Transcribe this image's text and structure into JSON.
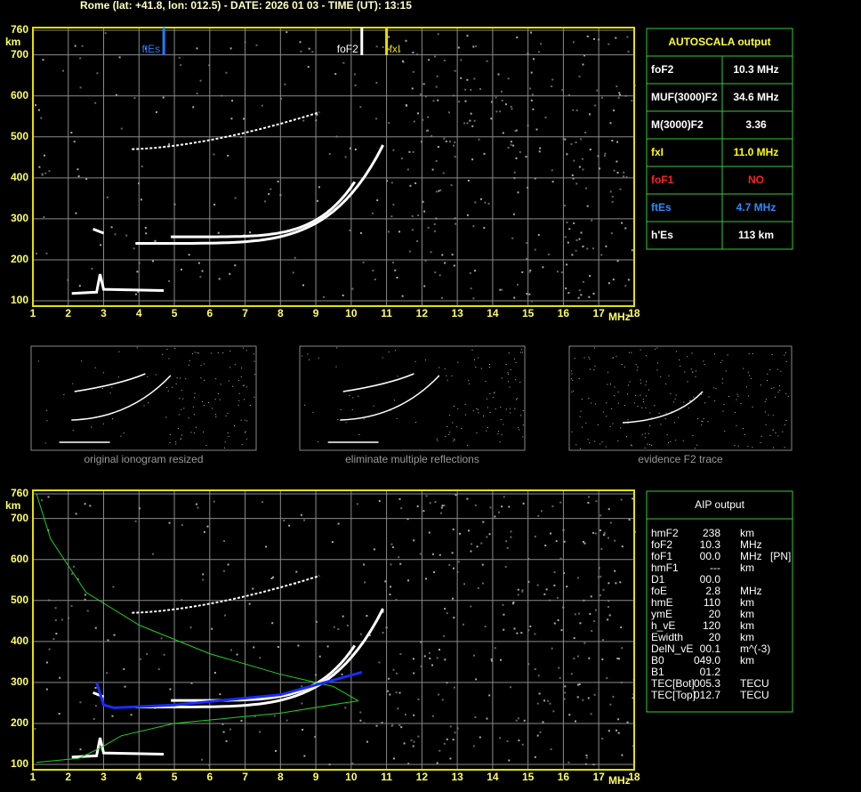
{
  "header": "Rome (lat: +41.8, lon: 012.5) - DATE: 2026 01 03 - TIME (UT): 13:15",
  "ionogram": {
    "x_unit": "MHz",
    "y_unit": "km",
    "xticks": [
      1,
      2,
      3,
      4,
      5,
      6,
      7,
      8,
      9,
      10,
      11,
      12,
      13,
      14,
      15,
      16,
      17,
      18
    ],
    "yticks": [
      760,
      700,
      600,
      500,
      400,
      300,
      200,
      100
    ],
    "markers": [
      {
        "label": "ftEs",
        "value": 4.7,
        "color": "#1e7fff"
      },
      {
        "label": "foF2",
        "value": 10.3,
        "color": "#ffffff"
      },
      {
        "label": "fxI",
        "value": 11.0,
        "color": "#e8e000"
      }
    ]
  },
  "autoscala": {
    "title": "AUTOSCALA output",
    "rows": [
      {
        "label": "foF2",
        "value": "10.3 MHz",
        "color": "#ffffff"
      },
      {
        "label": "MUF(3000)F2",
        "value": "34.6 MHz",
        "color": "#ffffff"
      },
      {
        "label": "M(3000)F2",
        "value": "3.36",
        "color": "#ffffff"
      },
      {
        "label": "fxI",
        "value": "11.0 MHz",
        "color": "#ffff00"
      },
      {
        "label": "foF1",
        "value": "NO",
        "color": "#ff2020"
      },
      {
        "label": "ftEs",
        "value": "4.7 MHz",
        "color": "#2b8cff"
      },
      {
        "label": "h'Es",
        "value": "113    km",
        "color": "#ffffff"
      }
    ]
  },
  "thumbnails": [
    "original ionogram resized",
    "eliminate multiple reflections",
    "evidence F2 trace"
  ],
  "aip": {
    "title": "AIP output",
    "rows": [
      [
        "hmF2",
        "238",
        "km"
      ],
      [
        "foF2",
        "10.3",
        "MHz"
      ],
      [
        "foF1",
        "00.0",
        "MHz",
        "[PN]"
      ],
      [
        "hmF1",
        "---",
        "km"
      ],
      [
        "D1",
        "00.0"
      ],
      [
        "foE",
        "2.8",
        "MHz"
      ],
      [
        "hmE",
        "110",
        "km"
      ],
      [
        "ymE",
        "20",
        "km"
      ],
      [
        "h_vE",
        "120",
        "km"
      ],
      [
        "Ewidth",
        "20",
        "km"
      ],
      [
        "DelN_vE",
        "00.1",
        "m^(-3)"
      ],
      [
        "B0",
        "049.0",
        "km"
      ],
      [
        "B1",
        "01.2"
      ],
      [
        "TEC[Bot]",
        "005.3",
        "TECU"
      ],
      [
        "TEC[Top]",
        "012.7",
        "TECU"
      ]
    ]
  }
}
